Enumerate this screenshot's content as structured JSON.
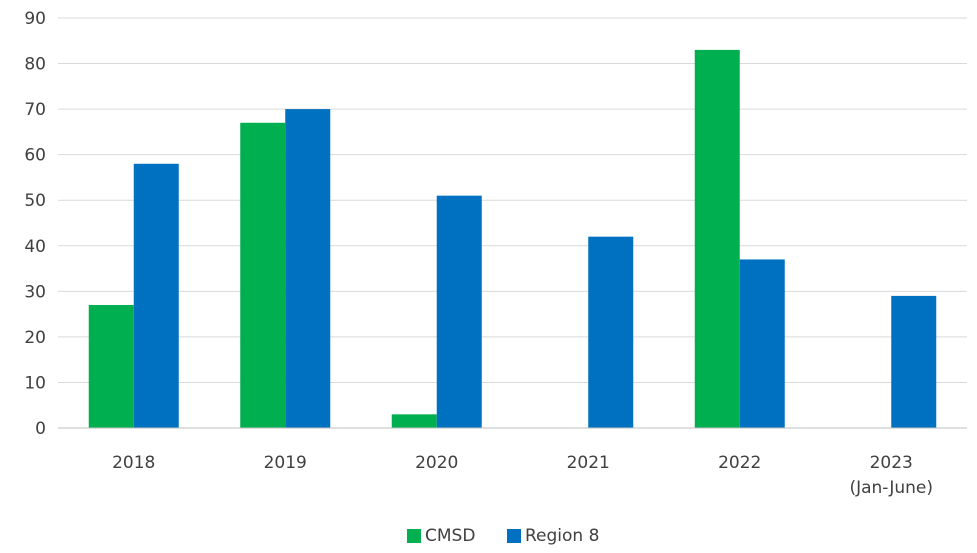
{
  "chart_data": {
    "type": "bar",
    "categories": [
      [
        "2018"
      ],
      [
        "2019"
      ],
      [
        "2020"
      ],
      [
        "2021"
      ],
      [
        "2022"
      ],
      [
        "2023",
        "(Jan-June)"
      ]
    ],
    "series": [
      {
        "name": "CMSD",
        "color": "#00b050",
        "values": [
          27,
          67,
          3,
          0,
          83,
          0
        ]
      },
      {
        "name": "Region 8",
        "color": "#0070c0",
        "values": [
          58,
          70,
          51,
          42,
          37,
          29
        ]
      }
    ],
    "ylim": [
      0,
      90
    ],
    "yticks": [
      0,
      10,
      20,
      30,
      40,
      50,
      60,
      70,
      80,
      90
    ],
    "grid": true,
    "legend": "bottom-center"
  }
}
